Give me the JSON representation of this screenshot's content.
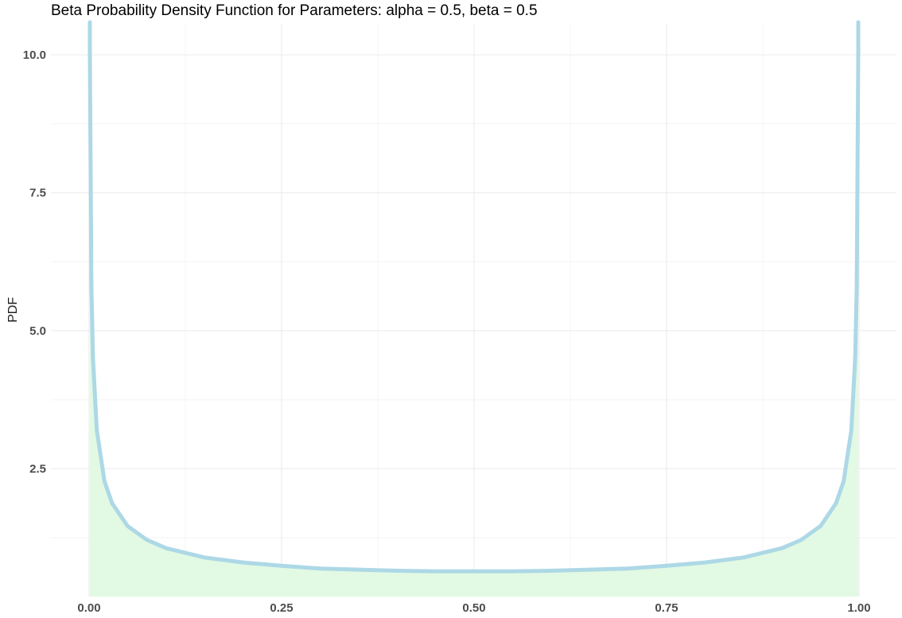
{
  "chart_data": {
    "type": "area",
    "title": "Beta Probability Density Function for Parameters: alpha = 0.5, beta = 0.5",
    "xlabel": "",
    "ylabel": "PDF",
    "xlim": [
      0,
      1
    ],
    "ylim": [
      0.5,
      10.5
    ],
    "x_ticks": [
      0,
      0.25,
      0.5,
      0.75,
      1
    ],
    "x_tick_labels": [
      "0.00",
      "0.25",
      "0.50",
      "0.75",
      "1.00"
    ],
    "y_ticks": [
      2.5,
      5,
      7.5,
      10
    ],
    "y_tick_labels": [
      "2.5",
      "5.0",
      "7.5",
      "10.0"
    ],
    "grid": true,
    "series": [
      {
        "x": [
          0.001,
          0.003,
          0.005,
          0.01,
          0.02,
          0.03,
          0.05,
          0.075,
          0.1,
          0.15,
          0.2,
          0.25,
          0.3,
          0.35,
          0.4,
          0.45,
          0.5,
          0.55,
          0.6,
          0.65,
          0.7,
          0.75,
          0.8,
          0.85,
          0.9,
          0.925,
          0.95,
          0.97,
          0.98,
          0.99,
          0.995,
          0.997,
          0.999
        ],
        "values": [
          10.07,
          5.82,
          4.51,
          3.2,
          2.27,
          1.87,
          1.46,
          1.21,
          1.06,
          0.89,
          0.8,
          0.74,
          0.69,
          0.67,
          0.65,
          0.64,
          0.64,
          0.64,
          0.65,
          0.67,
          0.69,
          0.74,
          0.8,
          0.89,
          1.06,
          1.21,
          1.46,
          1.87,
          2.27,
          3.2,
          4.51,
          5.82,
          10.07
        ]
      }
    ],
    "colors": {
      "line": "#add8e6",
      "fill": "#e2f9e3",
      "grid_major": "#ebebeb",
      "grid_minor": "#f2f2f2",
      "tick_text": "#4d4d4d"
    }
  }
}
